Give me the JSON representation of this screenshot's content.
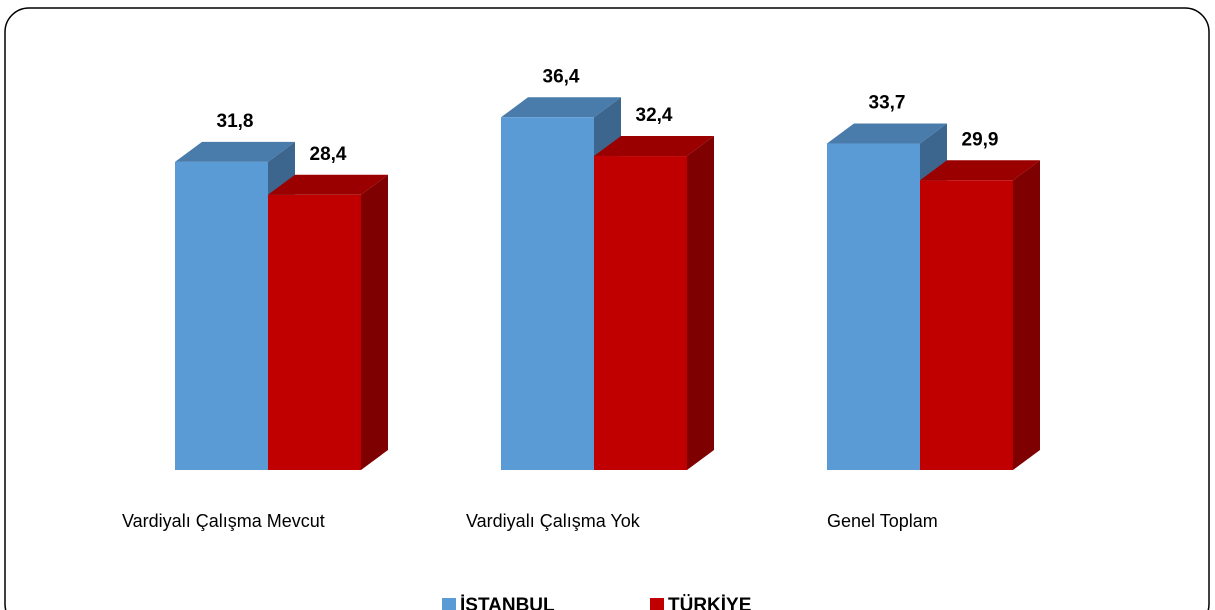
{
  "chart_data": {
    "type": "bar3d",
    "categories": [
      "Vardiyalı Çalışma Mevcut",
      "Vardiyalı Çalışma Yok",
      "Genel Toplam"
    ],
    "series": [
      {
        "name": "İSTANBUL",
        "color": "#5b9bd5",
        "values": [
          31.8,
          36.4,
          33.7
        ],
        "value_labels": [
          "31,8",
          "36,4",
          "33,7"
        ]
      },
      {
        "name": "TÜRKİYE",
        "color": "#c00000",
        "values": [
          28.4,
          32.4,
          29.9
        ],
        "value_labels": [
          "28,4",
          "32,4",
          "29,9"
        ]
      }
    ],
    "legend": "bottom"
  }
}
